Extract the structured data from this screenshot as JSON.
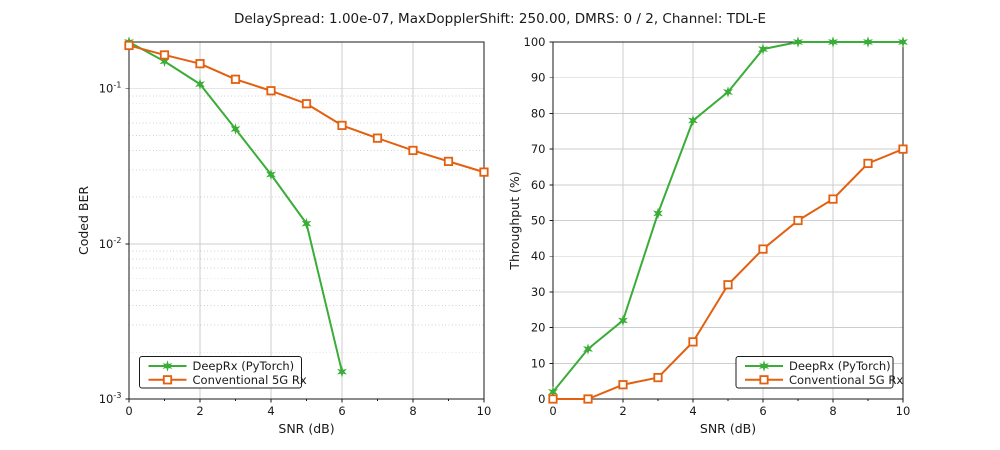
{
  "title": "DelaySpread: 1.00e-07, MaxDopplerShift: 250.00, DMRS: 0 / 2, Channel: TDL-E",
  "colors": {
    "deeprx": "#3aad38",
    "conventional": "#e2600f",
    "grid_major": "#cdcdcd",
    "grid_minor": "#d0d0d0",
    "spine": "#1a1a1a",
    "text": "#1a1a1a",
    "legend_border": "#1a1a1a",
    "background": "#ffffff"
  },
  "legend": {
    "entries": [
      {
        "label": "DeepRx (PyTorch)",
        "series": "deeprx",
        "marker": "star-marker"
      },
      {
        "label": "Conventional 5G Rx",
        "series": "conventional",
        "marker": "square-marker"
      }
    ]
  },
  "chart_data": [
    {
      "type": "line",
      "name": "ber",
      "title": "",
      "xlabel": "SNR (dB)",
      "ylabel": "Coded BER",
      "yscale": "log",
      "xlim": [
        0,
        10
      ],
      "ylim": [
        0.001,
        0.2
      ],
      "xticks": [
        0,
        2,
        4,
        6,
        8,
        10
      ],
      "xminorticks": [
        1,
        3,
        5,
        7,
        9
      ],
      "yticks": [
        {
          "value": 0.1,
          "base": "10",
          "exp": "-1"
        },
        {
          "value": 0.01,
          "base": "10",
          "exp": "-2"
        },
        {
          "value": 0.001,
          "base": "10",
          "exp": "-3"
        }
      ],
      "grid": true,
      "minor_grid": "dotted",
      "legend_position": "lower-left",
      "series": [
        {
          "name": "deeprx",
          "label": "DeepRx (PyTorch)",
          "marker": "star",
          "x": [
            0,
            1,
            2,
            3,
            4,
            5,
            6
          ],
          "y": [
            0.2,
            0.15,
            0.107,
            0.055,
            0.028,
            0.0135,
            0.0015
          ]
        },
        {
          "name": "conventional",
          "label": "Conventional 5G Rx",
          "marker": "square",
          "x": [
            0,
            1,
            2,
            3,
            4,
            5,
            6,
            7,
            8,
            9,
            10
          ],
          "y": [
            0.19,
            0.165,
            0.145,
            0.115,
            0.097,
            0.08,
            0.058,
            0.048,
            0.04,
            0.034,
            0.029
          ]
        }
      ]
    },
    {
      "type": "line",
      "name": "throughput",
      "title": "",
      "xlabel": "SNR (dB)",
      "ylabel": "Throughput (%)",
      "yscale": "linear",
      "xlim": [
        0,
        10
      ],
      "ylim": [
        0,
        100
      ],
      "xticks": [
        0,
        2,
        4,
        6,
        8,
        10
      ],
      "xminorticks": [
        1,
        3,
        5,
        7,
        9
      ],
      "yticks": [
        {
          "value": 0,
          "label": "0"
        },
        {
          "value": 10,
          "label": "10"
        },
        {
          "value": 20,
          "label": "20"
        },
        {
          "value": 30,
          "label": "30"
        },
        {
          "value": 40,
          "label": "40"
        },
        {
          "value": 50,
          "label": "50"
        },
        {
          "value": 60,
          "label": "60"
        },
        {
          "value": 70,
          "label": "70"
        },
        {
          "value": 80,
          "label": "80"
        },
        {
          "value": 90,
          "label": "90"
        },
        {
          "value": 100,
          "label": "100"
        }
      ],
      "grid": true,
      "minor_grid": "none",
      "legend_position": "lower-right",
      "series": [
        {
          "name": "deeprx",
          "label": "DeepRx (PyTorch)",
          "marker": "star",
          "x": [
            0,
            1,
            2,
            3,
            4,
            5,
            6,
            7,
            8,
            9,
            10
          ],
          "y": [
            2,
            14,
            22,
            52,
            78,
            86,
            98,
            100,
            100,
            100,
            100
          ]
        },
        {
          "name": "conventional",
          "label": "Conventional 5G Rx",
          "marker": "square",
          "x": [
            0,
            1,
            2,
            3,
            4,
            5,
            6,
            7,
            8,
            9,
            10
          ],
          "y": [
            0,
            0,
            4,
            6,
            16,
            32,
            42,
            50,
            56,
            66,
            70
          ]
        }
      ]
    }
  ]
}
